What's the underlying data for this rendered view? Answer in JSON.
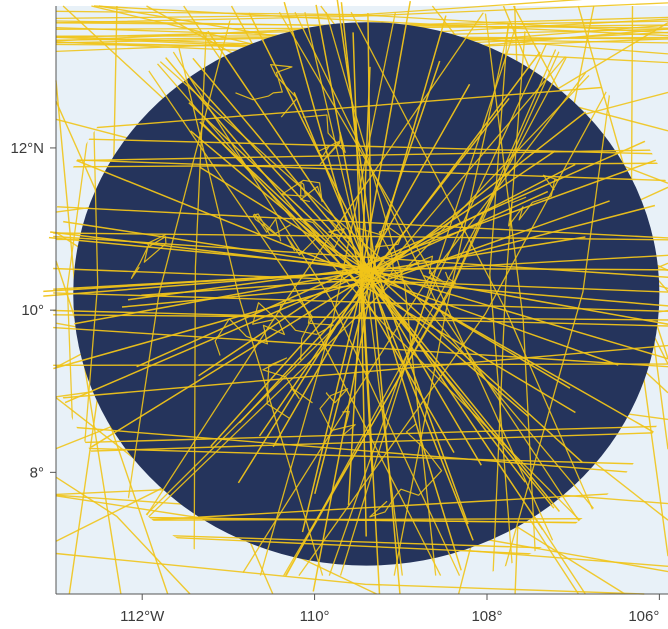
{
  "map": {
    "colors": {
      "background": "#e8f1f8",
      "disc": "#25345c",
      "tracks": "#f0c419",
      "axis": "#555555",
      "labels": "#3a3a3a"
    },
    "extent": {
      "lon_min": -113,
      "lon_max": -105.9,
      "lat_min": 6.5,
      "lat_max": 13.75
    },
    "disc": {
      "center_lon": -109.4,
      "center_lat": 10.2,
      "radius_lon_deg": 3.4,
      "radius_lat_deg": 3.35
    },
    "lat_ticks": [
      {
        "value": 12,
        "label": "12°N"
      },
      {
        "value": 10,
        "label": "10°"
      },
      {
        "value": 8,
        "label": "8°"
      }
    ],
    "lon_ticks": [
      {
        "value": -112,
        "label": "112°W"
      },
      {
        "value": -110,
        "label": "110°"
      },
      {
        "value": -108,
        "label": "108°"
      },
      {
        "value": -106,
        "label": "106°"
      }
    ]
  }
}
